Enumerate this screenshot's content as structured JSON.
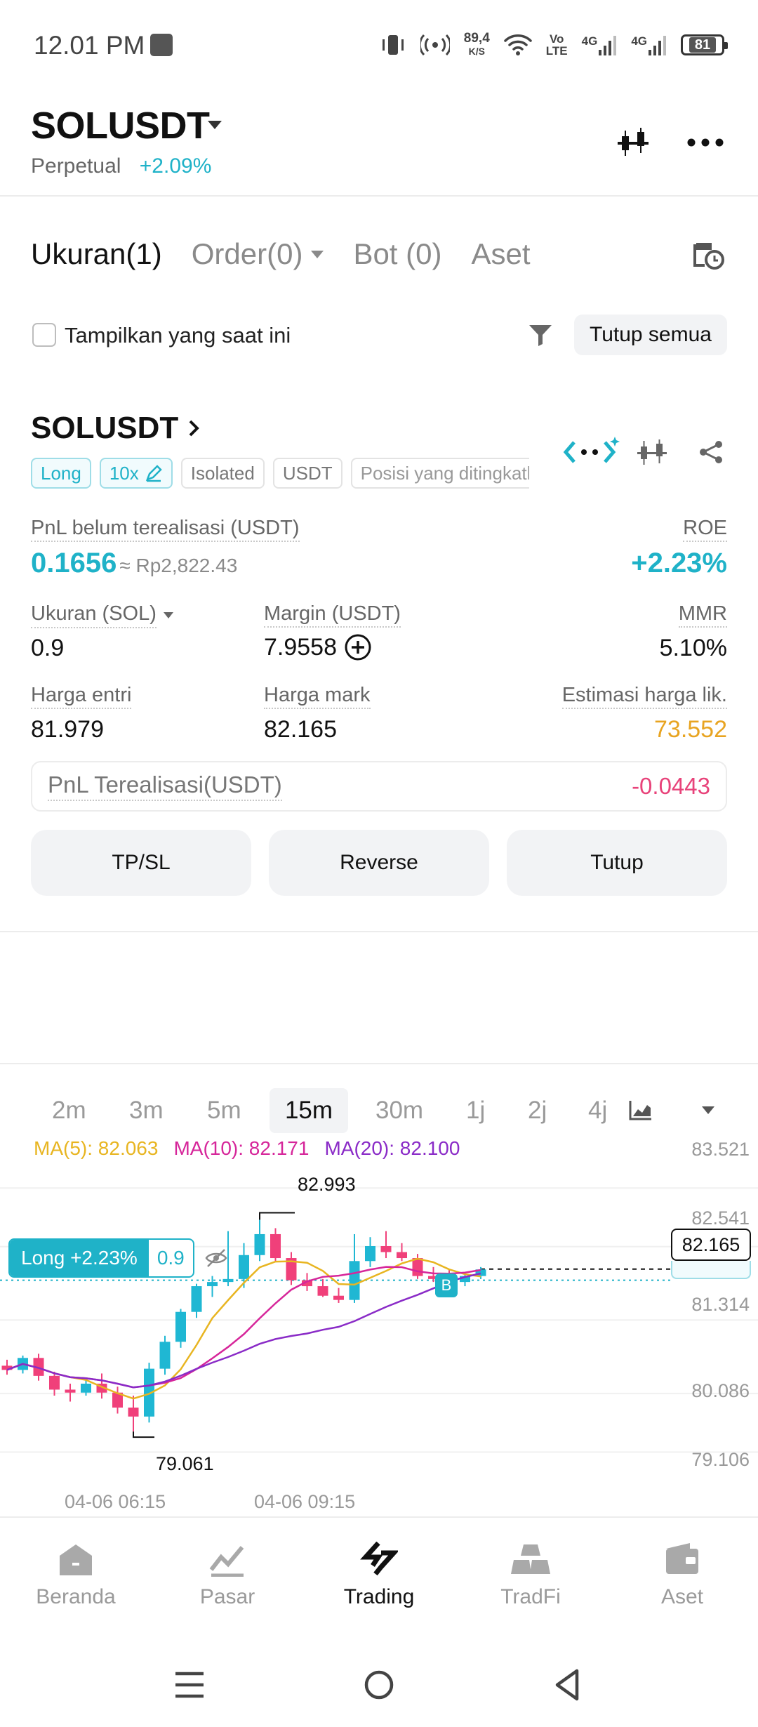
{
  "status_bar": {
    "time": "12.01 PM",
    "net_speed_top": "89,4",
    "net_speed_unit": "K/S",
    "volte_top": "Vo",
    "volte_bottom": "LTE",
    "sig1": "4G",
    "sig2": "4G",
    "battery": "81"
  },
  "header": {
    "pair": "SOLUSDT",
    "contract_type": "Perpetual",
    "change": "+2.09%"
  },
  "tabs": [
    {
      "label": "Ukuran(1)"
    },
    {
      "label": "Order(0)"
    },
    {
      "label": "Bot (0)"
    },
    {
      "label": "Aset"
    }
  ],
  "filter": {
    "show_current_label": "Tampilkan yang saat ini",
    "close_all_label": "Tutup semua"
  },
  "position": {
    "symbol": "SOLUSDT",
    "chips": [
      "Long",
      "10x",
      "Isolated",
      "USDT",
      "Posisi yang ditingkatk"
    ],
    "unrealized_pnl_label": "PnL belum terealisasi (USDT)",
    "unrealized_pnl_value": "0.1656",
    "unrealized_pnl_idr": "≈ Rp2,822.43",
    "roe_label": "ROE",
    "roe_value": "+2.23%",
    "size_label": "Ukuran (SOL)",
    "size_value": "0.9",
    "margin_label": "Margin (USDT)",
    "margin_value": "7.9558",
    "mmr_label": "MMR",
    "mmr_value": "5.10%",
    "entry_label": "Harga entri",
    "entry_value": "81.979",
    "mark_label": "Harga mark",
    "mark_value": "82.165",
    "liq_label": "Estimasi harga lik.",
    "liq_value": "73.552",
    "realized_label": "PnL Terealisasi(USDT)",
    "realized_value": "-0.0443",
    "buttons": [
      "TP/SL",
      "Reverse",
      "Tutup"
    ]
  },
  "timeframes": [
    "2m",
    "3m",
    "5m",
    "15m",
    "30m",
    "1j",
    "2j",
    "4j"
  ],
  "selected_timeframe": "15m",
  "chart_data": {
    "type": "candlestick",
    "ma": [
      {
        "name": "MA(5)",
        "value": "82.063",
        "color": "#e8b521"
      },
      {
        "name": "MA(10)",
        "value": "82.171",
        "color": "#d6269a"
      },
      {
        "name": "MA(20)",
        "value": "82.100",
        "color": "#8a2bc7"
      }
    ],
    "y_ticks": [
      "83.521",
      "82.541",
      "81.314",
      "80.086",
      "79.106"
    ],
    "ylim": [
      78.5,
      83.9
    ],
    "x_labels": [
      "04-06 06:15",
      "04-06 09:15"
    ],
    "high_label": "82.993",
    "low_label": "79.061",
    "current_price": "82.165",
    "position_tag": "Long +2.23%",
    "position_qty": "0.9",
    "entry_marker": "B",
    "candles": [
      {
        "o": 80.55,
        "h": 80.65,
        "l": 80.4,
        "c": 80.48
      },
      {
        "o": 80.48,
        "h": 80.72,
        "l": 80.42,
        "c": 80.68
      },
      {
        "o": 80.68,
        "h": 80.75,
        "l": 80.3,
        "c": 80.38
      },
      {
        "o": 80.38,
        "h": 80.45,
        "l": 80.05,
        "c": 80.15
      },
      {
        "o": 80.15,
        "h": 80.25,
        "l": 79.95,
        "c": 80.1
      },
      {
        "o": 80.1,
        "h": 80.35,
        "l": 80.05,
        "c": 80.25
      },
      {
        "o": 80.25,
        "h": 80.42,
        "l": 80.0,
        "c": 80.1
      },
      {
        "o": 80.1,
        "h": 80.2,
        "l": 79.75,
        "c": 79.85
      },
      {
        "o": 79.85,
        "h": 80.05,
        "l": 79.45,
        "c": 79.7
      },
      {
        "o": 79.7,
        "h": 80.6,
        "l": 79.6,
        "c": 80.5
      },
      {
        "o": 80.5,
        "h": 81.05,
        "l": 80.4,
        "c": 80.95
      },
      {
        "o": 80.95,
        "h": 81.5,
        "l": 80.85,
        "c": 81.45
      },
      {
        "o": 81.45,
        "h": 81.92,
        "l": 81.35,
        "c": 81.88
      },
      {
        "o": 81.88,
        "h": 82.05,
        "l": 81.7,
        "c": 81.95
      },
      {
        "o": 81.95,
        "h": 82.8,
        "l": 81.88,
        "c": 82.0
      },
      {
        "o": 82.0,
        "h": 82.6,
        "l": 81.85,
        "c": 82.4
      },
      {
        "o": 82.4,
        "h": 82.99,
        "l": 82.3,
        "c": 82.75
      },
      {
        "o": 82.75,
        "h": 82.85,
        "l": 82.3,
        "c": 82.35
      },
      {
        "o": 82.35,
        "h": 82.45,
        "l": 81.9,
        "c": 81.98
      },
      {
        "o": 81.98,
        "h": 82.1,
        "l": 81.8,
        "c": 81.88
      },
      {
        "o": 81.88,
        "h": 82.0,
        "l": 81.7,
        "c": 81.72
      },
      {
        "o": 81.72,
        "h": 81.85,
        "l": 81.6,
        "c": 81.65
      },
      {
        "o": 81.65,
        "h": 82.75,
        "l": 81.6,
        "c": 82.3
      },
      {
        "o": 82.3,
        "h": 82.7,
        "l": 82.2,
        "c": 82.55
      },
      {
        "o": 82.55,
        "h": 82.8,
        "l": 82.35,
        "c": 82.45
      },
      {
        "o": 82.45,
        "h": 82.6,
        "l": 82.3,
        "c": 82.35
      },
      {
        "o": 82.35,
        "h": 82.42,
        "l": 82.0,
        "c": 82.05
      },
      {
        "o": 82.05,
        "h": 82.2,
        "l": 81.95,
        "c": 82.0
      },
      {
        "o": 82.0,
        "h": 82.15,
        "l": 81.85,
        "c": 81.95
      },
      {
        "o": 81.95,
        "h": 82.1,
        "l": 81.88,
        "c": 82.05
      },
      {
        "o": 82.05,
        "h": 82.2,
        "l": 82.0,
        "c": 82.16
      }
    ]
  },
  "bottom_nav": [
    {
      "label": "Beranda"
    },
    {
      "label": "Pasar"
    },
    {
      "label": "Trading"
    },
    {
      "label": "TradFi"
    },
    {
      "label": "Aset"
    }
  ],
  "active_nav": "Trading"
}
